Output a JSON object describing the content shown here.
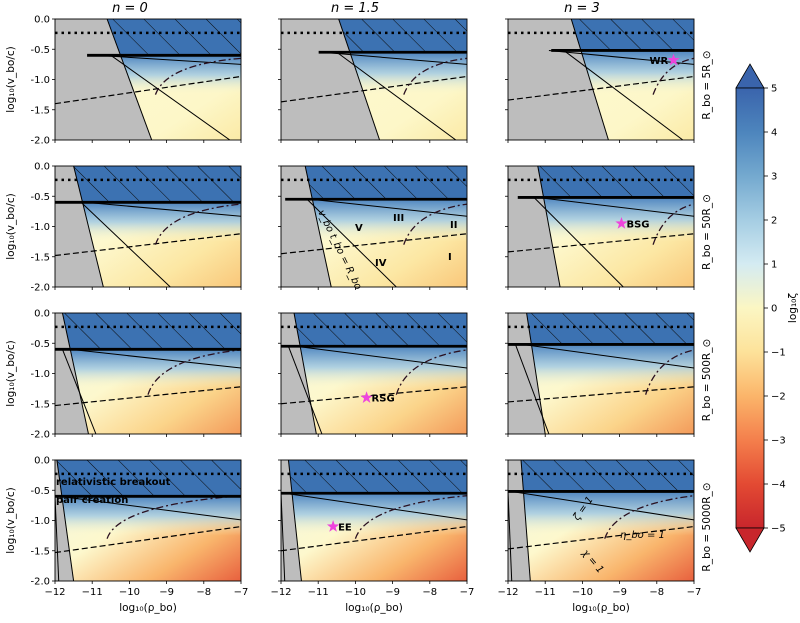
{
  "figure": {
    "columns": [
      "n = 0",
      "n = 1.5",
      "n = 3"
    ],
    "rows": [
      "R_bo = 5R_⊙",
      "R_bo = 50R_⊙",
      "R_bo = 500R_⊙",
      "R_bo = 5000R_⊙"
    ],
    "xlabel": "log₁₀(ρ_bo)",
    "ylabel": "log₁₀(v_bo/c)",
    "colorbar": {
      "label": "log₁₀ζ",
      "ticks": [
        "5",
        "4",
        "3",
        "2",
        "1",
        "0",
        "−1",
        "−2",
        "−3",
        "−4",
        "−5"
      ],
      "min": -5,
      "max": 5,
      "extend": "both",
      "colormap": "RdYlBu"
    },
    "annotations": {
      "region_labels": [
        "V",
        "III",
        "II",
        "IV",
        "I"
      ],
      "boundary_label": "v_bo t_bo = R_bo",
      "physics_labels": [
        "relativistic breakout",
        "pair creation"
      ],
      "curve_labels": [
        "ζ = 1",
        "η_bo = 1",
        "χ = 1"
      ],
      "stars": [
        "WR",
        "BSG",
        "RSG",
        "EE"
      ]
    }
  },
  "chart_data": {
    "type": "heatmap",
    "layout": "4 rows × 3 columns panel grid",
    "xlim": [
      -12,
      -7
    ],
    "ylim": [
      -2.0,
      0.0
    ],
    "x_ticks": [
      -12,
      -11,
      -10,
      -9,
      -8,
      -7
    ],
    "y_ticks": [
      0.0,
      -0.5,
      -1.0,
      -1.5,
      -2.0
    ],
    "colors": {
      "excluded_region": "#bdbdbd",
      "star_marker": "#ee44dd",
      "hatch_region": "#3c72b2"
    },
    "horizontal_lines": {
      "dotted": -0.23,
      "solid_bold": [
        -0.6,
        -0.55,
        -0.52
      ],
      "note": "bold line value by column (n=0, 1.5, 3)"
    },
    "stars": [
      {
        "label": "WR",
        "row": 0,
        "col": 2,
        "x": -7.55,
        "y": -0.68
      },
      {
        "label": "BSG",
        "row": 1,
        "col": 2,
        "x": -8.95,
        "y": -0.95
      },
      {
        "label": "RSG",
        "row": 2,
        "col": 1,
        "x": -9.7,
        "y": -1.4
      },
      {
        "label": "EE",
        "row": 3,
        "col": 1,
        "x": -10.6,
        "y": -1.1
      }
    ]
  }
}
